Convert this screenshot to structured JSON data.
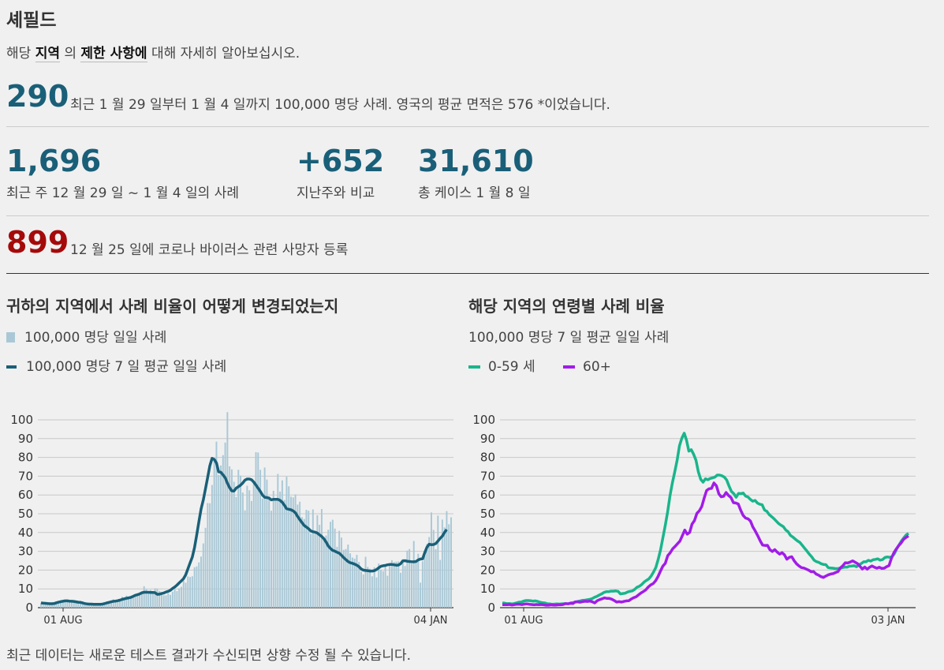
{
  "header": {
    "title": "셰필드",
    "intro_prefix": "해당",
    "intro_link1": "지역",
    "intro_mid": "의",
    "intro_link2": "제한 사항에",
    "intro_suffix": "대해 자세히 알아보십시오."
  },
  "rate": {
    "value": "290",
    "text": "최근 1 월 29 일부터 1 월 4 일까지 100,000 명당 사례. 영국의 평균 면적은 576 *이었습니다."
  },
  "stats": [
    {
      "value": "1,696",
      "label": "최근 주 12 월 29 일 ~ 1 월 4 일의 사례"
    },
    {
      "value": "+652",
      "label": "지난주와 비교"
    },
    {
      "value": "31,610",
      "label": "총 케이스 1 월 8 일"
    }
  ],
  "deaths": {
    "value": "899",
    "text": "12 월 25 일에 코로나 바이러스 관련 사망자 등록"
  },
  "chart1": {
    "title": "귀하의 지역에서 사례 비율이 어떻게 변경되었는지",
    "legend_bar": "100,000 명당 일일 사례",
    "legend_line": "100,000 명당 7 일 평균 일일 사례"
  },
  "chart2": {
    "title": "해당 지역의 연령별 사례 비율",
    "subtitle": "100,000 명당 7 일 평균 일일 사례",
    "legend_a": "0-59 세",
    "legend_b": "60+"
  },
  "note": "최근 데이터는 새로운 테스트 결과가 수신되면 상향 수정 될 수 있습니다.",
  "colors": {
    "bar": "#a9c8d6",
    "avg_line": "#1a5f78",
    "age_0_59": "#19b58b",
    "age_60_plus": "#a11ce8"
  },
  "chart_data": [
    {
      "type": "bar",
      "title": "귀하의 지역에서 사례 비율이 어떻게 변경되었는지",
      "x_tick_labels": [
        "01 AUG",
        "04 JAN"
      ],
      "ylim": [
        0,
        100
      ],
      "y_ticks": [
        0,
        10,
        20,
        30,
        40,
        50,
        60,
        70,
        80,
        90,
        100
      ],
      "series": [
        {
          "name": "100,000 명당 일일 사례",
          "kind": "bar",
          "values": [
            2.5,
            2.1,
            2,
            1.8,
            2.2,
            2,
            2.6,
            2.9,
            3.1,
            3.9,
            3.4,
            3.7,
            3.2,
            3.1,
            3.6,
            3.7,
            2.7,
            2.3,
            2.6,
            2.4,
            1.9,
            2,
            1.8,
            2.5,
            2,
            1.6,
            1.3,
            1.6,
            2.1,
            2.6,
            2.9,
            3.3,
            3.6,
            4.4,
            3.4,
            3.7,
            4.7,
            5.8,
            4.4,
            6.4,
            5.3,
            5.9,
            6.3,
            7.1,
            7.7,
            7.2,
            8.7,
            11.4,
            9.8,
            8.2,
            9.4,
            8.7,
            10.3,
            10.2,
            8.9,
            7.4,
            6.6,
            6.6,
            7.6,
            6.8,
            8.5,
            9.7,
            8.8,
            10.3,
            11.1,
            14.4,
            13.3,
            16.6,
            16.3,
            16.7,
            21.5,
            22,
            24.1,
            27.2,
            34.2,
            42.5,
            55.7,
            55.6,
            65.3,
            78.7,
            88.4,
            70.7,
            75.7,
            81.2,
            87.9,
            104.1,
            75.2,
            73.6,
            67,
            58.9,
            73.4,
            70.3,
            61.3,
            51.8,
            64.9,
            62.5,
            56.8,
            67,
            82.8,
            82.6,
            73.4,
            58.1,
            74.6,
            68.2,
            59.2,
            51.6,
            62.2,
            58.2,
            71.2,
            61.8,
            67.8,
            57.3,
            69.7,
            64.6,
            59.1,
            58.7,
            60.3,
            54.9,
            56.4,
            48.2,
            47.2,
            52.1,
            51.6,
            39.3,
            52.3,
            40.6,
            49.2,
            44.1,
            52.5,
            37.6,
            38.4,
            41.5,
            45.7,
            46.8,
            42.1,
            32.4,
            40.9,
            37.3,
            30.8,
            31.2,
            33.6,
            28.9,
            26.7,
            26.1,
            28.1,
            24.3,
            19.2,
            17.7,
            27.1,
            21.7,
            20.7,
            16.7,
            21.5,
            16.1,
            23.5,
            20.2,
            19.4,
            22.4,
            17,
            22.7,
            25.3,
            24.3,
            24.5,
            24.6,
            18.6,
            25.8,
            22.2,
            30.4,
            31.2,
            23.4,
            35.5,
            24.7,
            28.7,
            13.3,
            24.7,
            27.8,
            33.9,
            37.6,
            50.7,
            41.4,
            31.1,
            49,
            25.4,
            46.9,
            42.7,
            51.4,
            44.4,
            48.1
          ]
        },
        {
          "name": "100,000 명당 7 일 평균 일일 사례",
          "kind": "line",
          "values": [
            2.5,
            2.4,
            2.3,
            2.2,
            2.1,
            2.1,
            2.2,
            2.6,
            2.9,
            3.2,
            3.4,
            3.6,
            3.6,
            3.5,
            3.4,
            3.3,
            3.1,
            2.9,
            2.8,
            2.5,
            2.2,
            2,
            1.9,
            1.9,
            1.8,
            1.8,
            1.8,
            1.8,
            1.9,
            2.2,
            2.5,
            2.8,
            3.1,
            3.4,
            3.5,
            3.7,
            4,
            4.4,
            4.7,
            5,
            5.2,
            5.5,
            6,
            6.6,
            6.9,
            7.3,
            7.9,
            8.2,
            8.2,
            8.2,
            8.1,
            8.1,
            8,
            7.1,
            7.2,
            7.5,
            7.8,
            8.3,
            8.7,
            9.3,
            10.2,
            11,
            12,
            13.2,
            14.3,
            15.4,
            17.5,
            20.7,
            23.9,
            27,
            32.1,
            38.6,
            45.8,
            52.6,
            57.4,
            63.4,
            69.3,
            75.6,
            79.5,
            78.9,
            77,
            72.3,
            72.1,
            70.7,
            69.1,
            66.2,
            63.9,
            62.2,
            62.1,
            63.6,
            64.4,
            65.2,
            66.4,
            67.9,
            68.5,
            68.5,
            68.1,
            66.9,
            65.3,
            63.6,
            61.9,
            59.9,
            58.8,
            58.6,
            58.3,
            57.4,
            57.7,
            57.7,
            57.7,
            57.1,
            56.1,
            54.5,
            52.7,
            52.4,
            52.1,
            51.5,
            50.5,
            48.6,
            46.9,
            45.3,
            43.8,
            42.9,
            42,
            40.9,
            40.4,
            40.2,
            39.7,
            38.8,
            37.9,
            36.7,
            34.9,
            32.8,
            31.5,
            30.5,
            30.1,
            29.5,
            29,
            27.9,
            26.7,
            25.6,
            24.6,
            23.9,
            23.6,
            23.2,
            22.6,
            21.8,
            20.6,
            20,
            19.8,
            19.7,
            19.5,
            19.5,
            19.7,
            20.3,
            21.2,
            22,
            22.3,
            22.5,
            22.8,
            23,
            23,
            22.8,
            22.6,
            22.7,
            23.4,
            24.9,
            25,
            24.7,
            24.6,
            24.4,
            24.4,
            24.6,
            25.4,
            25.9,
            26,
            29.3,
            32.2,
            33.8,
            33.5,
            33.6,
            34.1,
            35.4,
            36.9,
            38.1,
            40.1,
            41.6
          ]
        }
      ]
    },
    {
      "type": "line",
      "title": "해당 지역의 연령별 사례 비율",
      "subtitle": "100,000 명당 7 일 평균 일일 사례",
      "x_tick_labels": [
        "01 AUG",
        "03 JAN"
      ],
      "ylim": [
        0,
        100
      ],
      "y_ticks": [
        0,
        10,
        20,
        30,
        40,
        50,
        60,
        70,
        80,
        90,
        100
      ],
      "series": [
        {
          "name": "0-59 세",
          "values": [
            2.5,
            2.4,
            2.1,
            2.2,
            2,
            2.2,
            2.5,
            2.9,
            3,
            3.5,
            3.8,
            3.8,
            3.7,
            3.5,
            3.6,
            3.3,
            2.9,
            2.6,
            2.5,
            2.1,
            2,
            1.8,
            1.9,
            2,
            1.9,
            2,
            2.1,
            2.1,
            2.1,
            2.5,
            2.7,
            3,
            3.3,
            3.6,
            3.9,
            4,
            4.2,
            4.4,
            4.8,
            5.5,
            6,
            6.7,
            7.3,
            8.1,
            8.5,
            8.5,
            8.8,
            8.8,
            8.9,
            8.7,
            7.3,
            7.5,
            7.7,
            8.3,
            8.7,
            8.9,
            9.7,
            10.9,
            11.4,
            12.3,
            13.6,
            14.5,
            15.3,
            16.8,
            18.9,
            21.4,
            25.7,
            30.8,
            37.3,
            43.9,
            51.1,
            59.7,
            66.5,
            72.3,
            78.5,
            86.2,
            90.3,
            92.9,
            89.2,
            83.3,
            84.1,
            81.7,
            78.5,
            72.3,
            68.3,
            66.8,
            68.6,
            68.1,
            68.8,
            69.1,
            69.5,
            70.6,
            70.6,
            70.2,
            69.5,
            68,
            64.8,
            61.9,
            60.7,
            58.8,
            60.8,
            60.7,
            61,
            59.4,
            58.9,
            57.7,
            56.7,
            57.1,
            55.7,
            55.1,
            54.8,
            52,
            51.3,
            49.6,
            48.5,
            47.4,
            46.1,
            44.8,
            43.9,
            43.1,
            41.4,
            40.4,
            38.5,
            37.6,
            36.5,
            35.5,
            34.7,
            33.2,
            31.6,
            30.1,
            28.5,
            27.1,
            25.3,
            24.5,
            24.1,
            23.4,
            23,
            22.9,
            21.3,
            21.1,
            21,
            20.8,
            20.8,
            21,
            21.3,
            21.6,
            21.6,
            22.1,
            22.2,
            22.3,
            21.8,
            22.8,
            23.5,
            24.4,
            24.4,
            25.2,
            24.8,
            25.5,
            25.7,
            26,
            25.3,
            25.6,
            26.7,
            27,
            26.8,
            27.1,
            28.7,
            31.3,
            33.4,
            35.5,
            37.2,
            38.7,
            39.6
          ]
        },
        {
          "name": "60+",
          "values": [
            1.6,
            1.6,
            1.6,
            1.7,
            1.4,
            1.6,
            1.8,
            1.8,
            1.6,
            1.9,
            2,
            1.8,
            1.7,
            1.5,
            1.7,
            1.6,
            1.7,
            1.5,
            1.3,
            1.3,
            1.5,
            1.4,
            1.4,
            1.5,
            1.5,
            1.7,
            2.2,
            2,
            2.3,
            2.2,
            3.1,
            3.1,
            2.9,
            3.2,
            3.4,
            3.3,
            3.5,
            3.1,
            2.5,
            3.7,
            4.3,
            4.7,
            5.2,
            4.9,
            4.9,
            4.5,
            3.8,
            3,
            3.2,
            3,
            3.3,
            3.6,
            3.7,
            4.6,
            5.3,
            5.8,
            6.8,
            7.8,
            8.6,
            9.5,
            11,
            12.1,
            12.8,
            14.3,
            16.6,
            19.4,
            22.1,
            23.6,
            27.7,
            29.2,
            31.3,
            32.6,
            34,
            35.4,
            38.3,
            41.3,
            39.1,
            40.1,
            44.5,
            46.4,
            50.2,
            51.6,
            53.9,
            58.5,
            62.4,
            63.3,
            63.5,
            66.4,
            64.9,
            60.6,
            59,
            59.3,
            61.3,
            59.7,
            58.6,
            55.9,
            55.7,
            55.2,
            51.9,
            49.1,
            47.7,
            47.3,
            46.1,
            43,
            40.8,
            38.3,
            35.6,
            33.3,
            33.1,
            33.2,
            30.9,
            29.9,
            30.9,
            29.6,
            28.5,
            29.3,
            28.1,
            25.8,
            26.8,
            27.1,
            24.9,
            23.3,
            22.2,
            21.3,
            21.1,
            20.5,
            19.9,
            19.1,
            19.2,
            17.9,
            17.3,
            16.5,
            16.1,
            16.8,
            17.5,
            17.9,
            18.1,
            18.7,
            19.2,
            21.2,
            22.3,
            23.9,
            23.8,
            24.3,
            24.9,
            24.2,
            23.5,
            22.1,
            20.6,
            21.6,
            20.5,
            21.5,
            22.2,
            21.5,
            21,
            21.5,
            20.9,
            21,
            21.8,
            22.4,
            26.4,
            29.3,
            31.3,
            33.1,
            34.5,
            36.4,
            37.4,
            38.2
          ]
        }
      ]
    }
  ]
}
